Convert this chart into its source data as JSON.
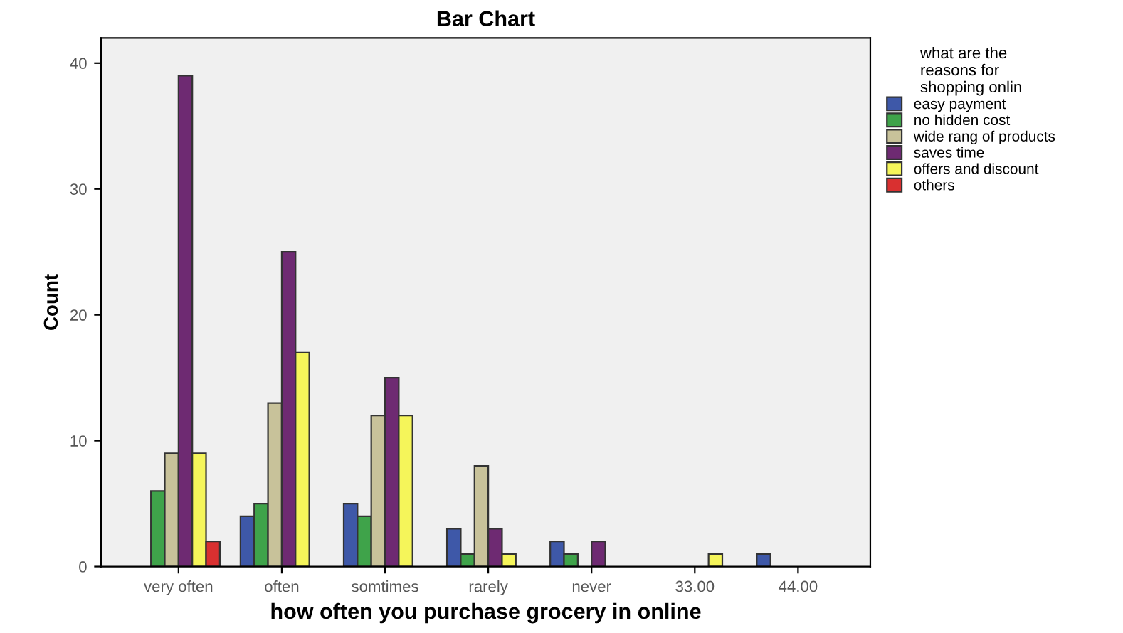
{
  "chart_data": {
    "type": "bar",
    "title": "Bar Chart",
    "xlabel": "how often you purchase grocery in online",
    "ylabel": "Count",
    "legend_title": "what are the\nreasons for\nshopping onlin",
    "categories": [
      "very often",
      "often",
      "somtimes",
      "rarely",
      "never",
      "33.00",
      "44.00"
    ],
    "series": [
      {
        "name": "easy payment",
        "color": "#3e58a8",
        "values": [
          null,
          4,
          5,
          3,
          2,
          null,
          1
        ]
      },
      {
        "name": "no hidden cost",
        "color": "#3fa34a",
        "values": [
          6,
          5,
          4,
          1,
          1,
          null,
          null
        ]
      },
      {
        "name": "wide rang of products",
        "color": "#c8c29a",
        "values": [
          9,
          13,
          12,
          8,
          null,
          null,
          null
        ]
      },
      {
        "name": "saves time",
        "color": "#6e2a72",
        "values": [
          39,
          25,
          15,
          3,
          2,
          null,
          null
        ]
      },
      {
        "name": "offers and discount",
        "color": "#f5f55a",
        "values": [
          9,
          17,
          12,
          1,
          null,
          1,
          null
        ]
      },
      {
        "name": "others",
        "color": "#d93030",
        "values": [
          2,
          null,
          null,
          null,
          null,
          null,
          null
        ]
      }
    ],
    "ylim": [
      0,
      42
    ],
    "yticks": [
      0,
      10,
      20,
      30,
      40
    ],
    "grid": false,
    "legend": "right"
  }
}
